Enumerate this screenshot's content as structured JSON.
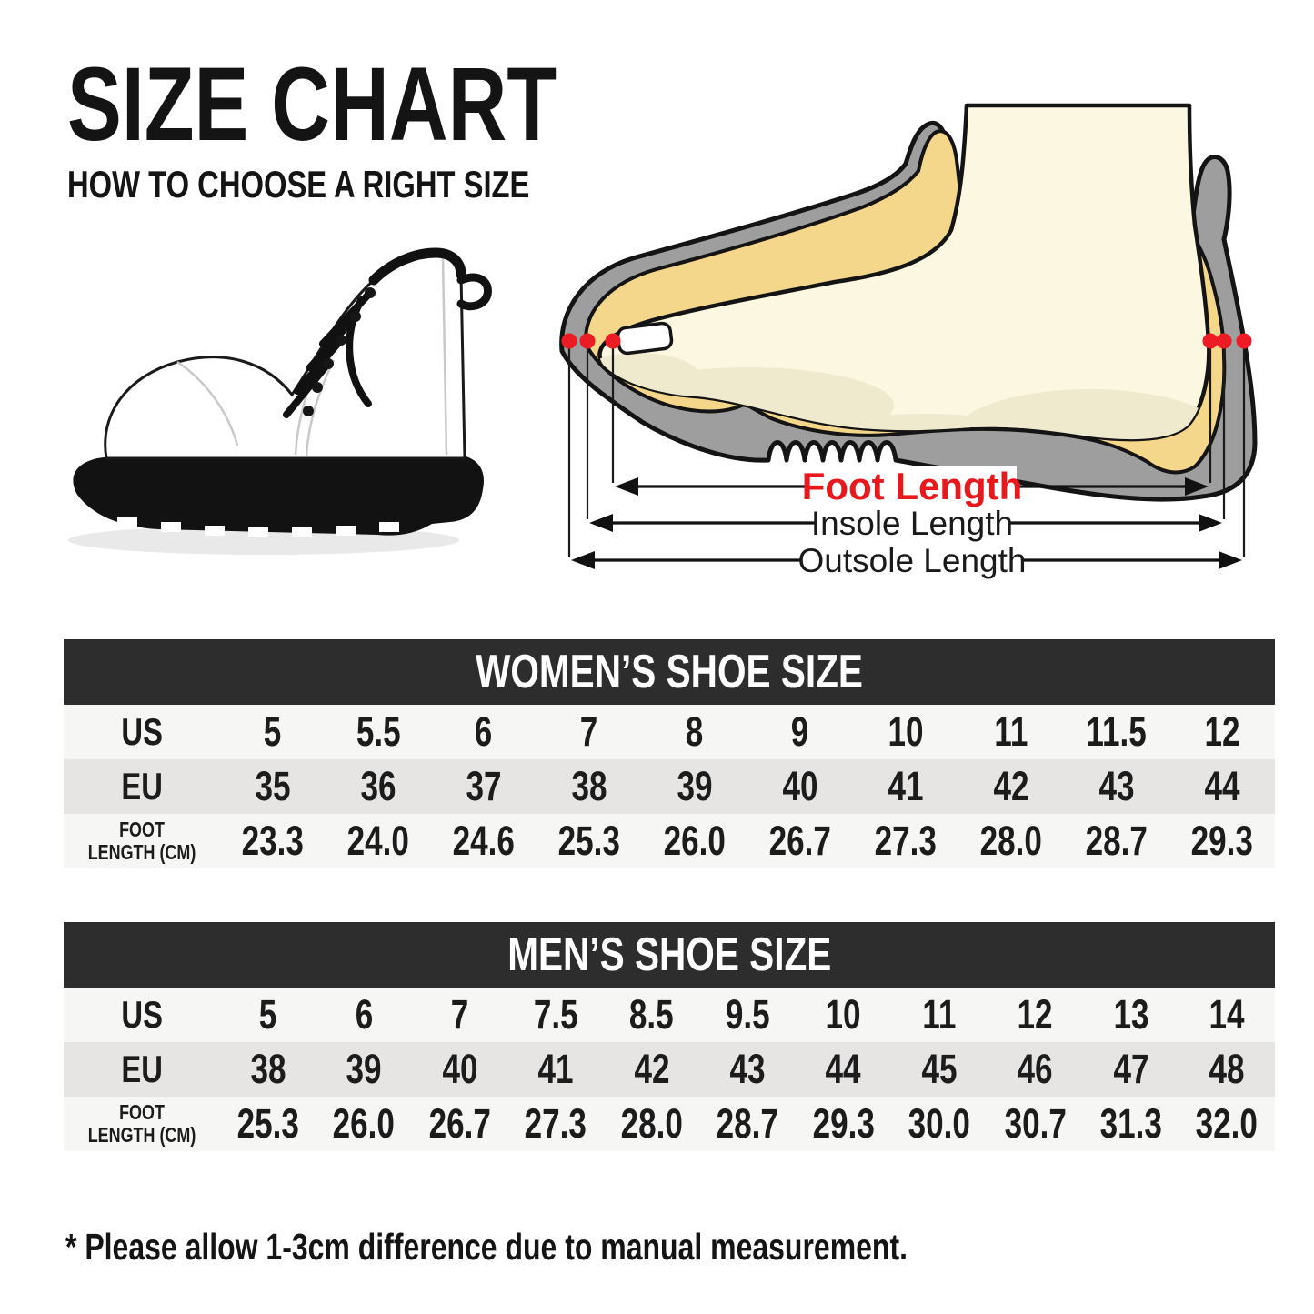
{
  "page": {
    "title": "SIZE CHART",
    "subtitle": "HOW TO CHOOSE A RIGHT SIZE",
    "footnote": "* Please allow 1-3cm difference due to manual measurement."
  },
  "diagram": {
    "labels": {
      "foot_length": "Foot Length",
      "insole_length": "Insole Length",
      "outsole_length": "Outsole Length"
    },
    "colors": {
      "shoe_gray": "#9e9e9e",
      "insole_yellow": "#f5d78b",
      "foot_cream": "#fbf7e0",
      "foot_sole_shade": "#efeace",
      "outline": "#141414",
      "accent_red": "#ec1c24"
    }
  },
  "women_table": {
    "title": "WOMEN’S SHOE SIZE",
    "rows": [
      {
        "key": "us",
        "label": "US",
        "values": [
          "5",
          "5.5",
          "6",
          "7",
          "8",
          "9",
          "10",
          "11",
          "11.5",
          "12"
        ]
      },
      {
        "key": "eu",
        "label": "EU",
        "values": [
          "35",
          "36",
          "37",
          "38",
          "39",
          "40",
          "41",
          "42",
          "43",
          "44"
        ]
      },
      {
        "key": "foot-length",
        "label": "FOOT\nLENGTH (CM)",
        "values": [
          "23.3",
          "24.0",
          "24.6",
          "25.3",
          "26.0",
          "26.7",
          "27.3",
          "28.0",
          "28.7",
          "29.3"
        ]
      }
    ]
  },
  "men_table": {
    "title": "MEN’S SHOE SIZE",
    "rows": [
      {
        "key": "us",
        "label": "US",
        "values": [
          "5",
          "6",
          "7",
          "7.5",
          "8.5",
          "9.5",
          "10",
          "11",
          "12",
          "13",
          "14"
        ]
      },
      {
        "key": "eu",
        "label": "EU",
        "values": [
          "38",
          "39",
          "40",
          "41",
          "42",
          "43",
          "44",
          "45",
          "46",
          "47",
          "48"
        ]
      },
      {
        "key": "foot-length",
        "label": "FOOT\nLENGTH (CM)",
        "values": [
          "25.3",
          "26.0",
          "26.7",
          "27.3",
          "28.0",
          "28.7",
          "29.3",
          "30.0",
          "30.7",
          "31.3",
          "32.0"
        ]
      }
    ]
  },
  "table_style": {
    "header_bg": "#2e2d2d",
    "row_plain_bg": "#f6f6f4",
    "row_alt_bg": "#e6e5e3"
  },
  "chart_data": [
    {
      "type": "table",
      "title": "WOMEN'S SHOE SIZE",
      "row_headers": [
        "US",
        "EU",
        "FOOT LENGTH (CM)"
      ],
      "rows": {
        "US": [
          5,
          5.5,
          6,
          7,
          8,
          9,
          10,
          11,
          11.5,
          12
        ],
        "EU": [
          35,
          36,
          37,
          38,
          39,
          40,
          41,
          42,
          43,
          44
        ],
        "FOOT_LENGTH_CM": [
          23.3,
          24.0,
          24.6,
          25.3,
          26.0,
          26.7,
          27.3,
          28.0,
          28.7,
          29.3
        ]
      }
    },
    {
      "type": "table",
      "title": "MEN'S SHOE SIZE",
      "row_headers": [
        "US",
        "EU",
        "FOOT LENGTH (CM)"
      ],
      "rows": {
        "US": [
          5,
          6,
          7,
          7.5,
          8.5,
          9.5,
          10,
          11,
          12,
          13,
          14
        ],
        "EU": [
          38,
          39,
          40,
          41,
          42,
          43,
          44,
          45,
          46,
          47,
          48
        ],
        "FOOT_LENGTH_CM": [
          25.3,
          26.0,
          26.7,
          27.3,
          28.0,
          28.7,
          29.3,
          30.0,
          30.7,
          31.3,
          32.0
        ]
      }
    }
  ]
}
